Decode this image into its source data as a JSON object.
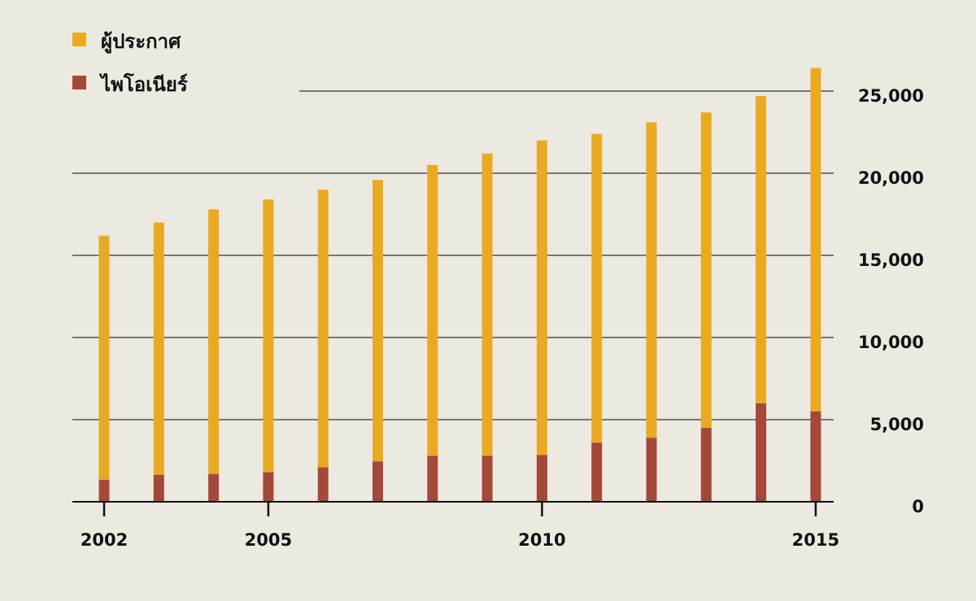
{
  "chart_data": {
    "type": "bar",
    "stacked": true,
    "title": "",
    "xlabel": "",
    "ylabel": "",
    "ylim": [
      0,
      27000
    ],
    "x": [
      2002,
      2003,
      2004,
      2005,
      2006,
      2007,
      2008,
      2009,
      2010,
      2011,
      2012,
      2013,
      2014,
      2015
    ],
    "x_tick_labels": [
      "2002",
      "2005",
      "2010",
      "2015"
    ],
    "x_tick_values": [
      2002,
      2005,
      2010,
      2015
    ],
    "y_ticks": [
      0,
      5000,
      10000,
      15000,
      20000,
      25000
    ],
    "y_tick_labels": [
      "0",
      "5,000",
      "10,000",
      "15,000",
      "20,000",
      "25,000"
    ],
    "legend_position": "top-left",
    "series": [
      {
        "name": "ไพโอเนียร์",
        "color": "#a3493a",
        "values": [
          1350,
          1650,
          1700,
          1800,
          2100,
          2450,
          2800,
          2800,
          2850,
          3600,
          3900,
          4500,
          6000,
          5500
        ]
      },
      {
        "name": "ผู้ประกาศ",
        "color": "#e9aa22",
        "values": [
          14850,
          15350,
          16100,
          16600,
          16900,
          17150,
          17700,
          18400,
          19150,
          18800,
          19200,
          19200,
          18700,
          20900
        ]
      }
    ],
    "totals": [
      16200,
      17000,
      17800,
      18400,
      19000,
      19600,
      20500,
      21200,
      22000,
      22400,
      23100,
      23700,
      24700,
      26400
    ]
  }
}
